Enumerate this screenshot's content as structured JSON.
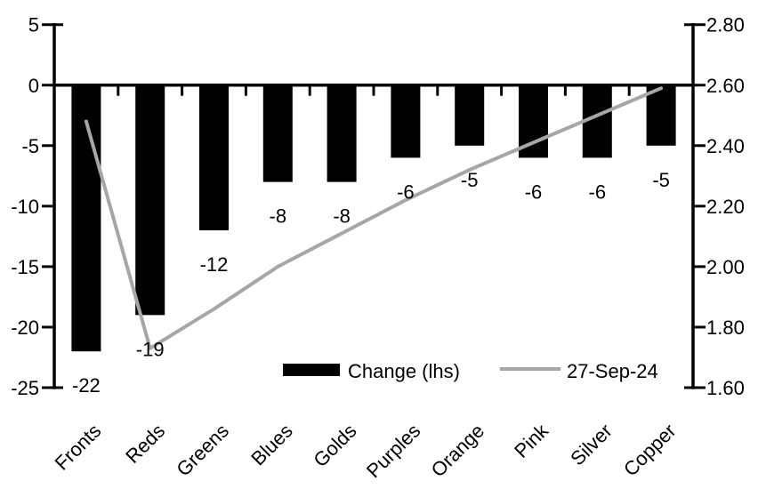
{
  "chart_data": {
    "type": "combo-bar-line",
    "title": "",
    "categories": [
      "Fronts",
      "Reds",
      "Greens",
      "Blues",
      "Golds",
      "Purples",
      "Orange",
      "Pink",
      "Silver",
      "Copper"
    ],
    "series": [
      {
        "name": "Change (lhs)",
        "type": "bar",
        "axis": "left",
        "color": "#000000",
        "values": [
          -22,
          -19,
          -12,
          -8,
          -8,
          -6,
          -5,
          -6,
          -6,
          -5
        ],
        "data_labels": [
          "-22",
          "-19",
          "-12",
          "-8",
          "-8",
          "-6",
          "-5",
          "-6",
          "-6",
          "-5"
        ]
      },
      {
        "name": "27-Sep-24",
        "type": "line",
        "axis": "right",
        "color": "#a6a6a6",
        "values": [
          2.48,
          1.73,
          1.86,
          2.0,
          2.11,
          2.22,
          2.32,
          2.41,
          2.5,
          2.59
        ]
      }
    ],
    "left_axis": {
      "max": 5,
      "min": -25,
      "ticks": [
        "5",
        "0",
        "-5",
        "-10",
        "-15",
        "-20",
        "-25"
      ]
    },
    "right_axis": {
      "max": 2.8,
      "min": 1.6,
      "ticks": [
        "2.80",
        "2.60",
        "2.40",
        "2.20",
        "2.00",
        "1.80",
        "1.60"
      ]
    },
    "legend": {
      "position": "bottom-inside",
      "entries": [
        {
          "label": "Change (lhs)",
          "swatch": "bar",
          "color": "#000000"
        },
        {
          "label": "27-Sep-24",
          "swatch": "line",
          "color": "#a6a6a6"
        }
      ]
    },
    "grid": false,
    "colors": {
      "bar": "#000000",
      "line": "#a6a6a6",
      "axis": "#000000",
      "background": "#ffffff",
      "text": "#000000"
    }
  }
}
